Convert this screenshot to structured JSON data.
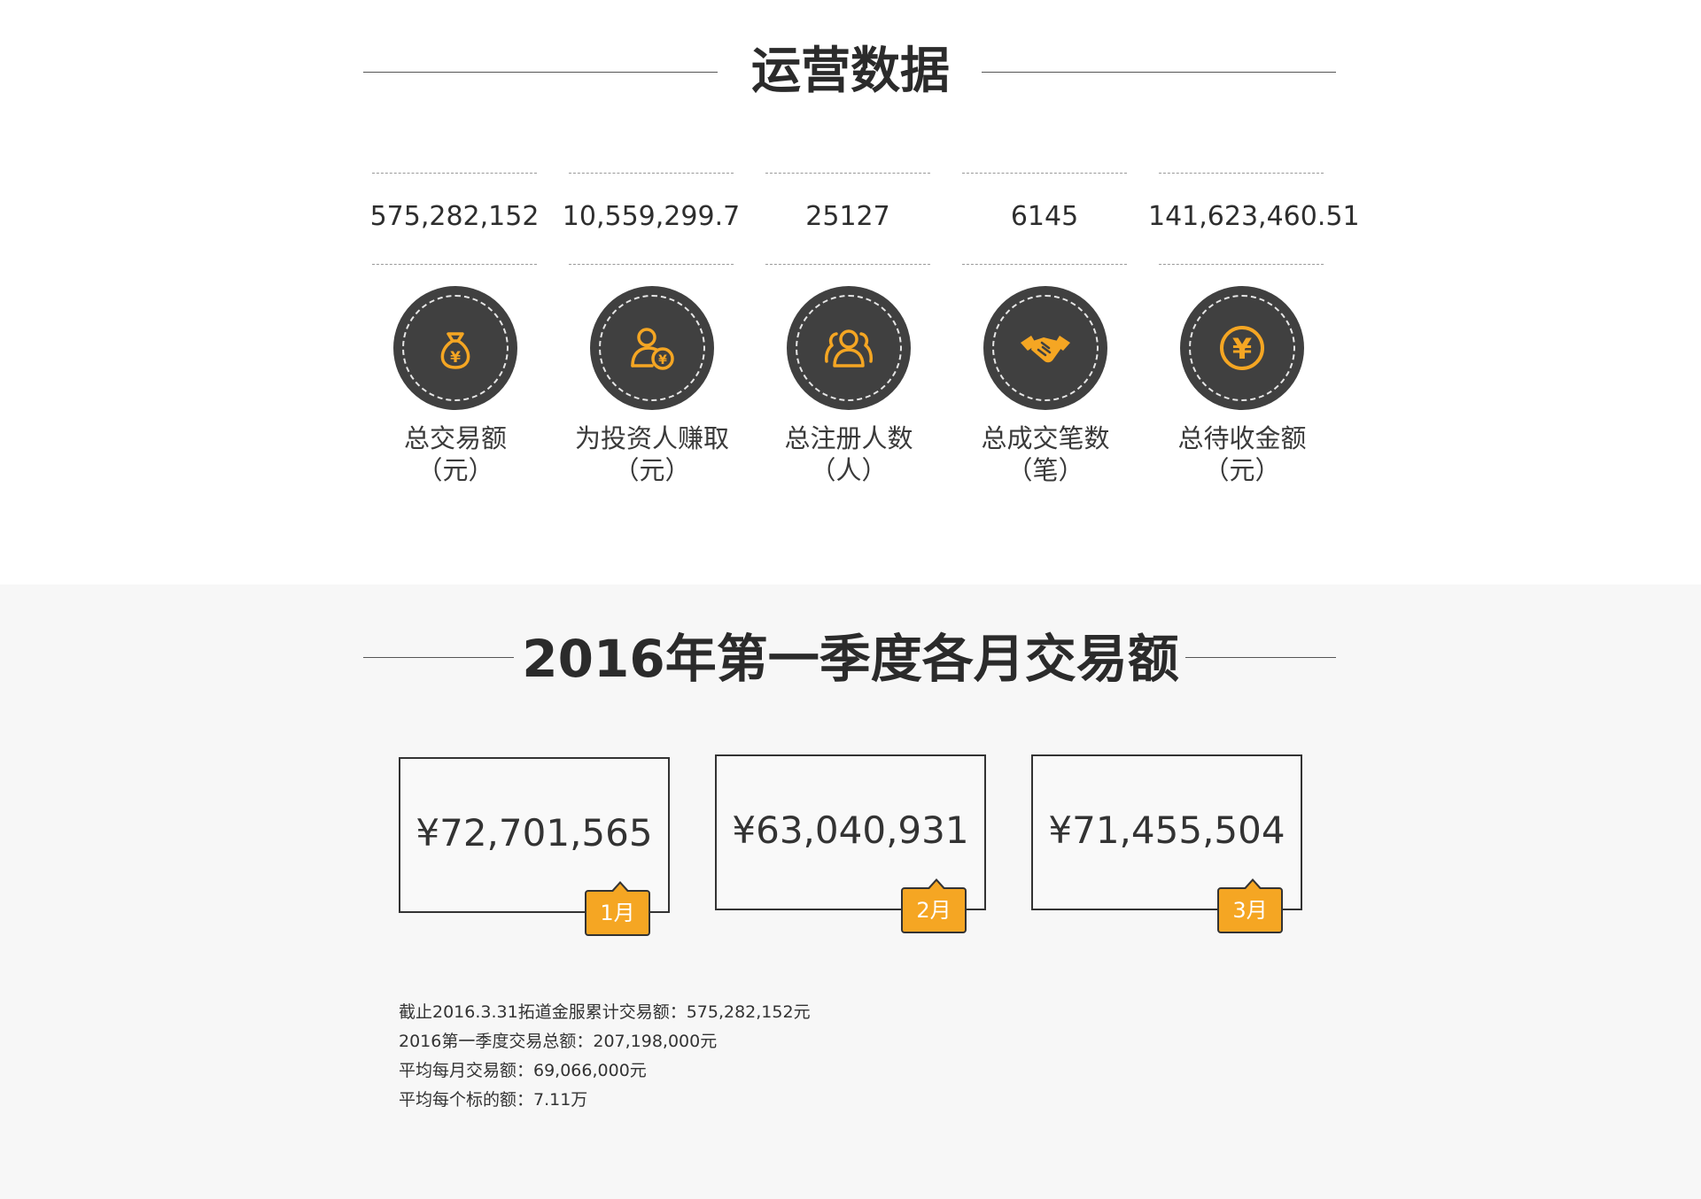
{
  "ops": {
    "title": "运营数据",
    "stats": [
      {
        "value": "575,282,152",
        "label": "总交易额",
        "unit": "（元）",
        "icon": "money-bag-icon"
      },
      {
        "value": "10,559,299.7",
        "label": "为投资人赚取",
        "unit": "（元）",
        "icon": "investor-earnings-icon"
      },
      {
        "value": "25127",
        "label": "总注册人数",
        "unit": "（人）",
        "icon": "users-group-icon"
      },
      {
        "value": "6145",
        "label": "总成交笔数",
        "unit": "（笔）",
        "icon": "handshake-icon"
      },
      {
        "value": "141,623,460.51",
        "label": "总待收金额",
        "unit": "（元）",
        "icon": "yuan-coin-icon"
      }
    ]
  },
  "q1": {
    "title": "2016年第一季度各月交易额",
    "months": [
      {
        "amount": "¥72,701,565",
        "tag": "1月"
      },
      {
        "amount": "¥63,040,931",
        "tag": "2月"
      },
      {
        "amount": "¥71,455,504",
        "tag": "3月"
      }
    ],
    "summary": [
      "截止2016.3.31拓道金服累计交易额：575,282,152元",
      "2016第一季度交易总额：207,198,000元",
      "平均每月交易额：69,066,000元",
      "平均每个标的额：7.11万"
    ]
  },
  "colors": {
    "accent": "#f5a623",
    "icon_bg": "#404040",
    "section2_bg": "#f7f7f7"
  }
}
